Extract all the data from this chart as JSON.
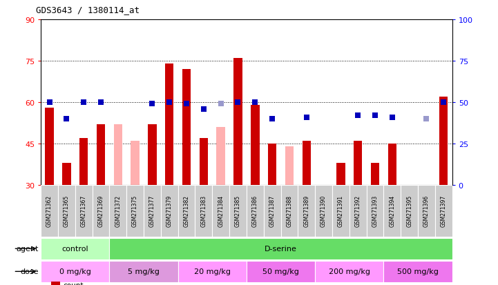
{
  "title": "GDS3643 / 1380114_at",
  "samples": [
    "GSM271362",
    "GSM271365",
    "GSM271367",
    "GSM271369",
    "GSM271372",
    "GSM271375",
    "GSM271377",
    "GSM271379",
    "GSM271382",
    "GSM271383",
    "GSM271384",
    "GSM271385",
    "GSM271386",
    "GSM271387",
    "GSM271388",
    "GSM271389",
    "GSM271390",
    "GSM271391",
    "GSM271392",
    "GSM271393",
    "GSM271394",
    "GSM271395",
    "GSM271396",
    "GSM271397"
  ],
  "count_values": [
    58,
    38,
    47,
    52,
    null,
    null,
    52,
    74,
    72,
    47,
    null,
    76,
    59,
    45,
    null,
    46,
    30,
    38,
    46,
    38,
    45,
    30,
    null,
    62
  ],
  "rank_values": [
    50,
    40,
    50,
    50,
    null,
    null,
    49,
    50,
    49,
    46,
    null,
    50,
    50,
    40,
    null,
    41,
    null,
    null,
    42,
    42,
    41,
    null,
    40,
    50
  ],
  "absent_count": [
    null,
    null,
    null,
    null,
    52,
    46,
    null,
    null,
    null,
    null,
    51,
    null,
    null,
    null,
    44,
    null,
    null,
    null,
    null,
    null,
    null,
    null,
    null,
    null
  ],
  "absent_rank": [
    null,
    null,
    null,
    null,
    null,
    null,
    null,
    null,
    null,
    null,
    49,
    null,
    null,
    null,
    null,
    null,
    null,
    null,
    null,
    null,
    null,
    null,
    40,
    null
  ],
  "ylim_left": [
    30,
    90
  ],
  "ylim_right": [
    0,
    100
  ],
  "yticks_left": [
    30,
    45,
    60,
    75,
    90
  ],
  "yticks_right": [
    0,
    25,
    50,
    75,
    100
  ],
  "bar_color_red": "#cc0000",
  "bar_color_pink": "#ffb0b0",
  "dot_color_blue": "#0000bb",
  "dot_color_lightblue": "#9999cc",
  "agent_groups": [
    {
      "label": "control",
      "start": 0,
      "end": 4,
      "color": "#bbffbb"
    },
    {
      "label": "D-serine",
      "start": 4,
      "end": 24,
      "color": "#66dd66"
    }
  ],
  "dose_groups": [
    {
      "label": "0 mg/kg",
      "start": 0,
      "end": 4,
      "color": "#ffaaff"
    },
    {
      "label": "5 mg/kg",
      "start": 4,
      "end": 8,
      "color": "#dd99dd"
    },
    {
      "label": "20 mg/kg",
      "start": 8,
      "end": 12,
      "color": "#ff99ff"
    },
    {
      "label": "50 mg/kg",
      "start": 12,
      "end": 16,
      "color": "#ee77ee"
    },
    {
      "label": "200 mg/kg",
      "start": 16,
      "end": 20,
      "color": "#ff99ff"
    },
    {
      "label": "500 mg/kg",
      "start": 20,
      "end": 24,
      "color": "#ee77ee"
    }
  ],
  "bg_color": "#ffffff",
  "plot_bg_color": "#ffffff",
  "label_bg_color": "#cccccc",
  "bar_width": 0.5
}
